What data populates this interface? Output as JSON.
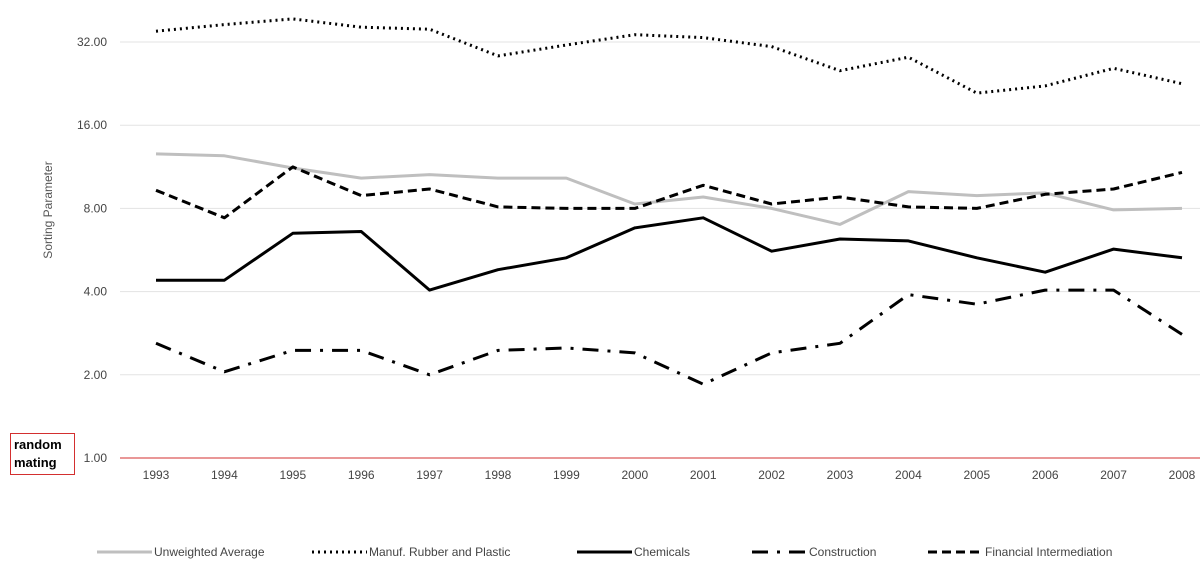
{
  "chart_data": {
    "type": "line",
    "ylabel": "Sorting Parameter",
    "xlabel": "",
    "yscale": "log2",
    "ylim": [
      1,
      40
    ],
    "y_ticks": [
      "1.00",
      "2.00",
      "4.00",
      "8.00",
      "16.00",
      "32.00"
    ],
    "y_tick_values": [
      1,
      2,
      4,
      8,
      16,
      32
    ],
    "categories": [
      "1993",
      "1994",
      "1995",
      "1996",
      "1997",
      "1998",
      "1999",
      "2000",
      "2001",
      "2002",
      "2003",
      "2004",
      "2005",
      "2006",
      "2007",
      "2008"
    ],
    "grid": true,
    "legend_position": "bottom",
    "series": [
      {
        "name": "Unweighted Average",
        "color": "#bfbfbf",
        "dash": "solid",
        "width": 3,
        "values": [
          12.6,
          12.4,
          11.2,
          10.3,
          10.6,
          10.3,
          10.3,
          8.3,
          8.8,
          8.0,
          7.0,
          9.2,
          8.9,
          9.1,
          7.9,
          8.0
        ]
      },
      {
        "name": "Manuf. Rubber and Plastic",
        "color": "#000000",
        "dash": "dotted",
        "width": 3,
        "values": [
          35.0,
          37.0,
          38.8,
          36.2,
          35.6,
          28.5,
          31.2,
          34.0,
          33.2,
          30.8,
          25.2,
          28.2,
          20.9,
          22.2,
          25.7,
          22.6
        ]
      },
      {
        "name": "Chemicals",
        "color": "#000000",
        "dash": "solid",
        "width": 3,
        "values": [
          4.4,
          4.4,
          6.5,
          6.6,
          4.05,
          4.8,
          5.3,
          6.8,
          7.4,
          5.6,
          6.2,
          6.1,
          5.3,
          4.7,
          5.7,
          5.3
        ]
      },
      {
        "name": "Construction",
        "color": "#000000",
        "dash": "dashdot",
        "width": 3,
        "values": [
          2.6,
          2.05,
          2.45,
          2.45,
          2.0,
          2.45,
          2.5,
          2.4,
          1.85,
          2.4,
          2.6,
          3.9,
          3.6,
          4.05,
          4.05,
          2.8
        ]
      },
      {
        "name": "Financial Intermediation",
        "color": "#000000",
        "dash": "dashed",
        "width": 3,
        "values": [
          9.3,
          7.4,
          11.3,
          8.9,
          9.4,
          8.1,
          8.0,
          8.0,
          9.7,
          8.3,
          8.8,
          8.1,
          8.0,
          9.0,
          9.4,
          10.8
        ]
      }
    ]
  },
  "annotation": {
    "line1": "random",
    "line2": "mating",
    "border_color": "#d32f2f"
  }
}
